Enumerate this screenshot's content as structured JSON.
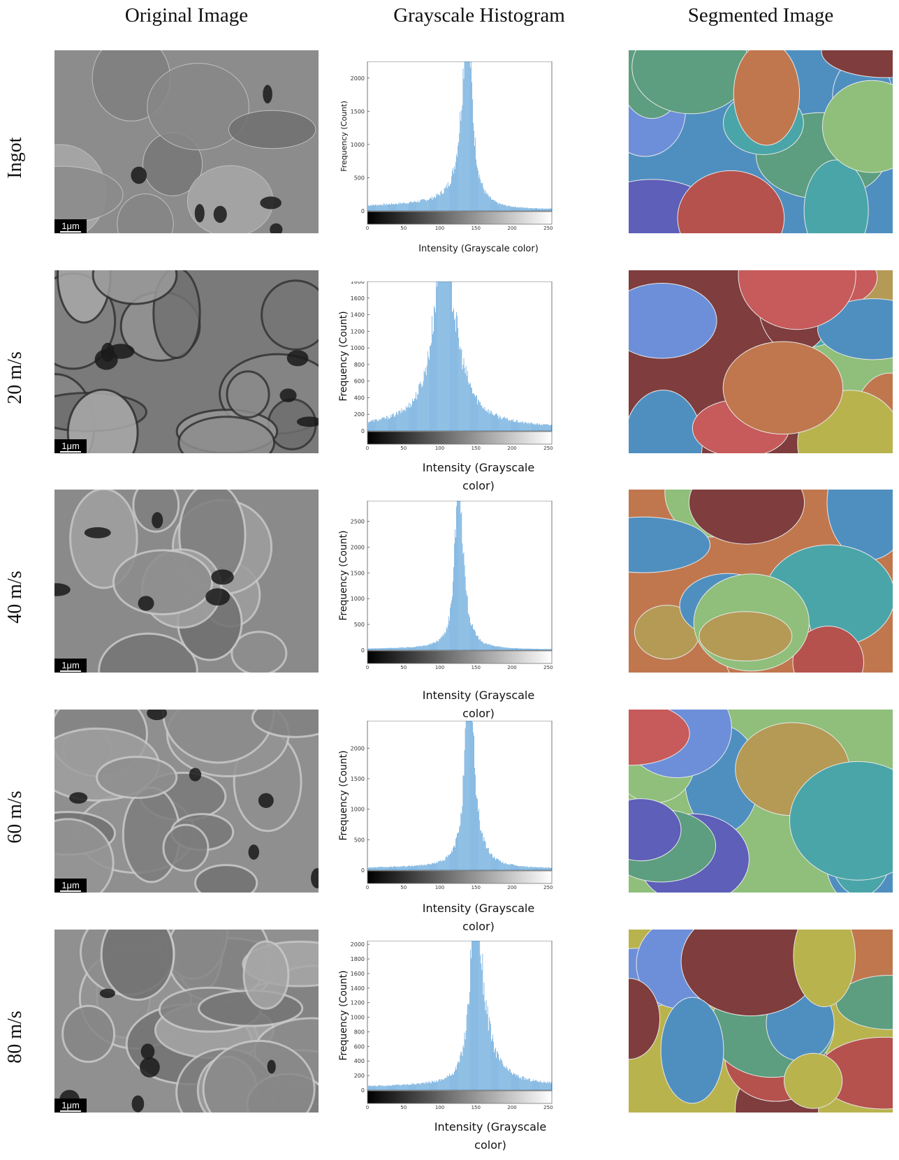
{
  "columns": {
    "original": "Original Image",
    "histogram": "Grayscale Histogram",
    "segmented": "Segmented Image"
  },
  "scale_bar_label": "1μm",
  "colors": {
    "histogram_bar": "#3d8fd1",
    "segment_palette": [
      "#b5524e",
      "#5c9e7f",
      "#b49a55",
      "#4f8fc0",
      "#7f3d3d",
      "#c0774e",
      "#8fbf7a",
      "#b9b34e",
      "#4aa5a8",
      "#5d5fb8",
      "#c75a5a",
      "#6d8fd9"
    ]
  },
  "chart_data": [
    {
      "type": "bar",
      "row_label": "Ingot",
      "xlabel": "Intensity (Grayscale color)",
      "ylabel": "Frequency (Count)",
      "xlim": [
        0,
        255
      ],
      "ylim": [
        0,
        2250
      ],
      "yticks": [
        0,
        500,
        1000,
        1500,
        2000
      ],
      "xticks": [
        0,
        50,
        100,
        150,
        200,
        250
      ],
      "peak_x": 138,
      "peak_value": 2250,
      "baseline_value": 120,
      "tail_value": 20,
      "left_width": 9,
      "right_width": 8
    },
    {
      "type": "bar",
      "row_label": "20 m/s",
      "xlabel": "Intensity (Grayscale color)",
      "ylabel": "Frequency (Count)",
      "xlim": [
        0,
        255
      ],
      "ylim": [
        0,
        1800
      ],
      "yticks": [
        0,
        200,
        400,
        600,
        800,
        1000,
        1200,
        1400,
        1600,
        1800
      ],
      "xticks": [
        0,
        50,
        100,
        150,
        200,
        250
      ],
      "peak_x": 105,
      "peak_value": 1800,
      "baseline_value": 100,
      "tail_value": 30,
      "left_width": 16,
      "right_width": 20
    },
    {
      "type": "bar",
      "row_label": "40 m/s",
      "xlabel": "Intensity (Grayscale color)",
      "ylabel": "Frequency (Count)",
      "xlim": [
        0,
        255
      ],
      "ylim": [
        0,
        2900
      ],
      "yticks": [
        0,
        500,
        1000,
        1500,
        2000,
        2500
      ],
      "xticks": [
        0,
        50,
        100,
        150,
        200,
        250
      ],
      "peak_x": 126,
      "peak_value": 2900,
      "baseline_value": 40,
      "tail_value": 10,
      "left_width": 6,
      "right_width": 7
    },
    {
      "type": "bar",
      "row_label": "60 m/s",
      "xlabel": "Intensity (Grayscale color)",
      "ylabel": "Frequency (Count)",
      "xlim": [
        0,
        255
      ],
      "ylim": [
        0,
        2450
      ],
      "yticks": [
        0,
        500,
        1000,
        1500,
        2000
      ],
      "xticks": [
        0,
        50,
        100,
        150,
        200,
        250
      ],
      "peak_x": 140,
      "peak_value": 2450,
      "baseline_value": 60,
      "tail_value": 20,
      "left_width": 7,
      "right_width": 9
    },
    {
      "type": "bar",
      "row_label": "80 m/s",
      "xlabel": "Intensity (Grayscale color)",
      "ylabel": "Frequency (Count)",
      "xlim": [
        0,
        255
      ],
      "ylim": [
        0,
        2050
      ],
      "yticks": [
        0,
        200,
        400,
        600,
        800,
        1000,
        1200,
        1400,
        1600,
        1800,
        2000
      ],
      "xticks": [
        0,
        50,
        100,
        150,
        200,
        250
      ],
      "peak_x": 148,
      "peak_value": 2050,
      "baseline_value": 80,
      "tail_value": 60,
      "left_width": 8,
      "right_width": 14
    }
  ]
}
